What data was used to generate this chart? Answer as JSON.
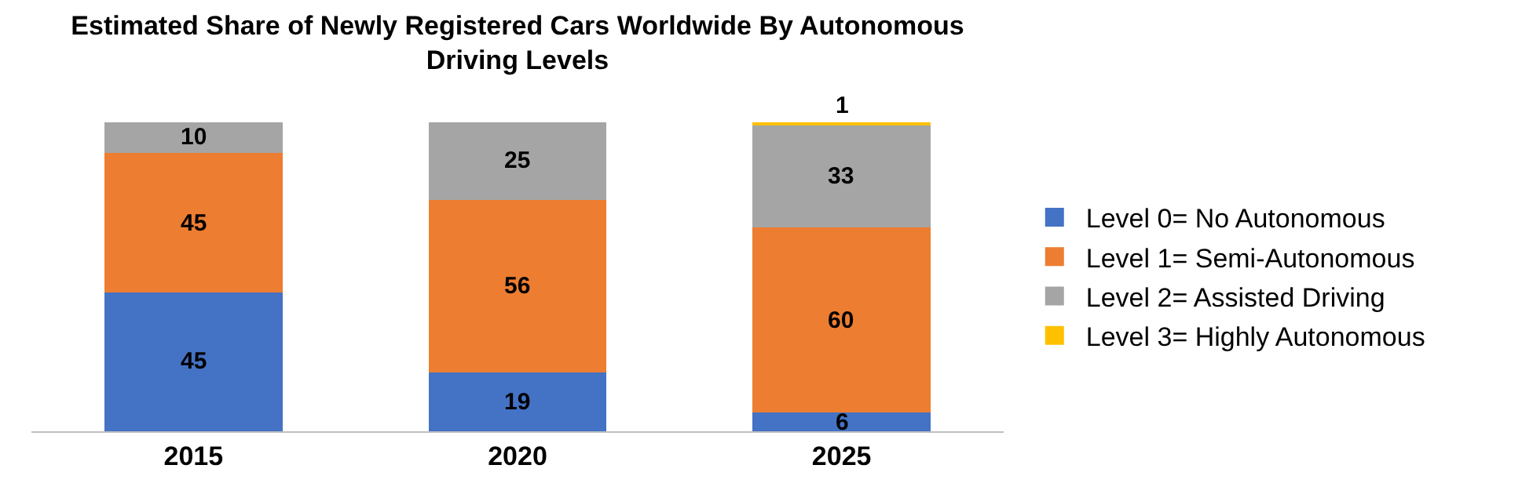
{
  "chart_data": {
    "type": "bar",
    "title": "Estimated Share of Newly Registered Cars Worldwide By Autonomous\nDriving Levels",
    "categories": [
      "2015",
      "2020",
      "2025"
    ],
    "stacked": true,
    "data_labels": true,
    "legend": "right",
    "tick_labels": "x",
    "ylim": [
      0,
      100
    ],
    "series": [
      {
        "name": "Level 0= No Autonomous",
        "color": "#4472c4",
        "values": [
          45,
          19,
          6
        ]
      },
      {
        "name": "Level 1= Semi-Autonomous",
        "color": "#ed7d31",
        "values": [
          45,
          56,
          60
        ]
      },
      {
        "name": "Level 2= Assisted Driving",
        "color": "#a5a5a5",
        "values": [
          10,
          25,
          33
        ]
      },
      {
        "name": "Level 3= Highly Autonomous",
        "color": "#ffc000",
        "values": [
          null,
          null,
          1
        ]
      }
    ]
  }
}
